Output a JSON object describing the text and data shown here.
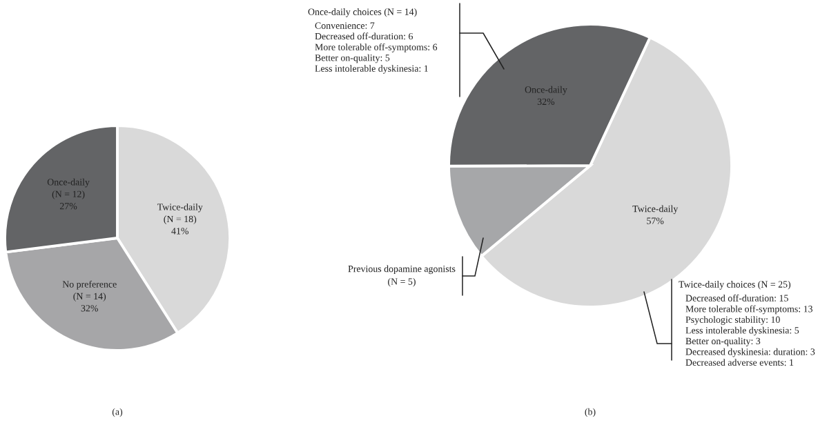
{
  "chart_data": [
    {
      "type": "pie",
      "title": "(a)",
      "categories": [
        "Twice-daily (N = 18)",
        "No preference (N = 14)",
        "Once-daily (N = 12)"
      ],
      "values": [
        41,
        32,
        27
      ],
      "colors": [
        "#d9d9d9",
        "#a6a6a8",
        "#636466"
      ],
      "value_labels": [
        "41%",
        "32%",
        "27%"
      ]
    },
    {
      "type": "pie",
      "title": "(b)",
      "categories": [
        "Twice-daily",
        "Previous dopamine agonists (N = 5)",
        "Once-daily"
      ],
      "values": [
        57,
        11,
        32
      ],
      "colors": [
        "#d9d9d9",
        "#a6a7a9",
        "#636466"
      ],
      "value_labels": [
        "57%",
        null,
        "32%"
      ],
      "annotations": [
        "Once-daily choices (N = 14)\nConvenience: 7\nDecreased off-duration: 6\nMore tolerable off-symptoms: 6\nBetter on-quality: 5\nLess intolerable dyskinesia: 1",
        "Twice-daily choices (N = 25)\nDecreased off-duration: 15\nMore tolerable off-symptoms: 13\nPsychologic stability: 10\nLess intolerable dyskinesia: 5\nBetter on-quality: 3\nDecreased dyskinesia: duration: 3\nDecreased adverse events: 1"
      ]
    }
  ]
}
